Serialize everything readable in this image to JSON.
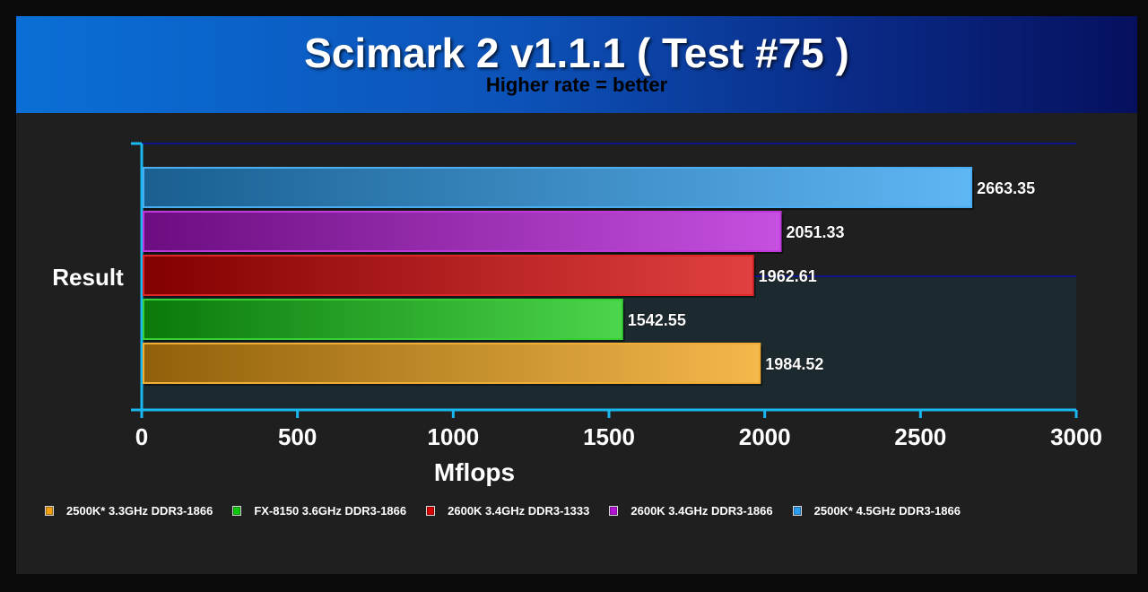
{
  "chart_data": {
    "type": "bar",
    "orientation": "horizontal",
    "title": "Scimark 2 v1.1.1 ( Test #75 )",
    "subtitle": "Higher rate = better",
    "xlabel": "Mflops",
    "categories": [
      "Result"
    ],
    "xlim": [
      0,
      3000
    ],
    "xticks": [
      0,
      500,
      1000,
      1500,
      2000,
      2500,
      3000
    ],
    "series": [
      {
        "name": "2500K* 4.5GHz DDR3-1866",
        "value": 2663.35,
        "label": "2663.35",
        "color": "#2a9ef0"
      },
      {
        "name": "2600K 3.4GHz DDR3-1866",
        "value": 2051.33,
        "label": "2051.33",
        "color": "#b315d6"
      },
      {
        "name": "2600K 3.4GHz DDR3-1333",
        "value": 1962.61,
        "label": "1962.61",
        "color": "#d80000"
      },
      {
        "name": "FX-8150 3.6GHz DDR3-1866",
        "value": 1542.55,
        "label": "1542.55",
        "color": "#10c810"
      },
      {
        "name": "2500K* 3.3GHz DDR3-1866",
        "value": 1984.52,
        "label": "1984.52",
        "color": "#f0a010"
      }
    ],
    "legend_order": [
      {
        "name": "2500K* 3.3GHz DDR3-1866",
        "color": "#f0a010"
      },
      {
        "name": "FX-8150 3.6GHz DDR3-1866",
        "color": "#10c810"
      },
      {
        "name": "2600K 3.4GHz DDR3-1333",
        "color": "#d80000"
      },
      {
        "name": "2600K 3.4GHz DDR3-1866",
        "color": "#b315d6"
      },
      {
        "name": "2500K* 4.5GHz DDR3-1866",
        "color": "#2a9ef0"
      }
    ],
    "legend_position": "bottom",
    "grid": false
  }
}
